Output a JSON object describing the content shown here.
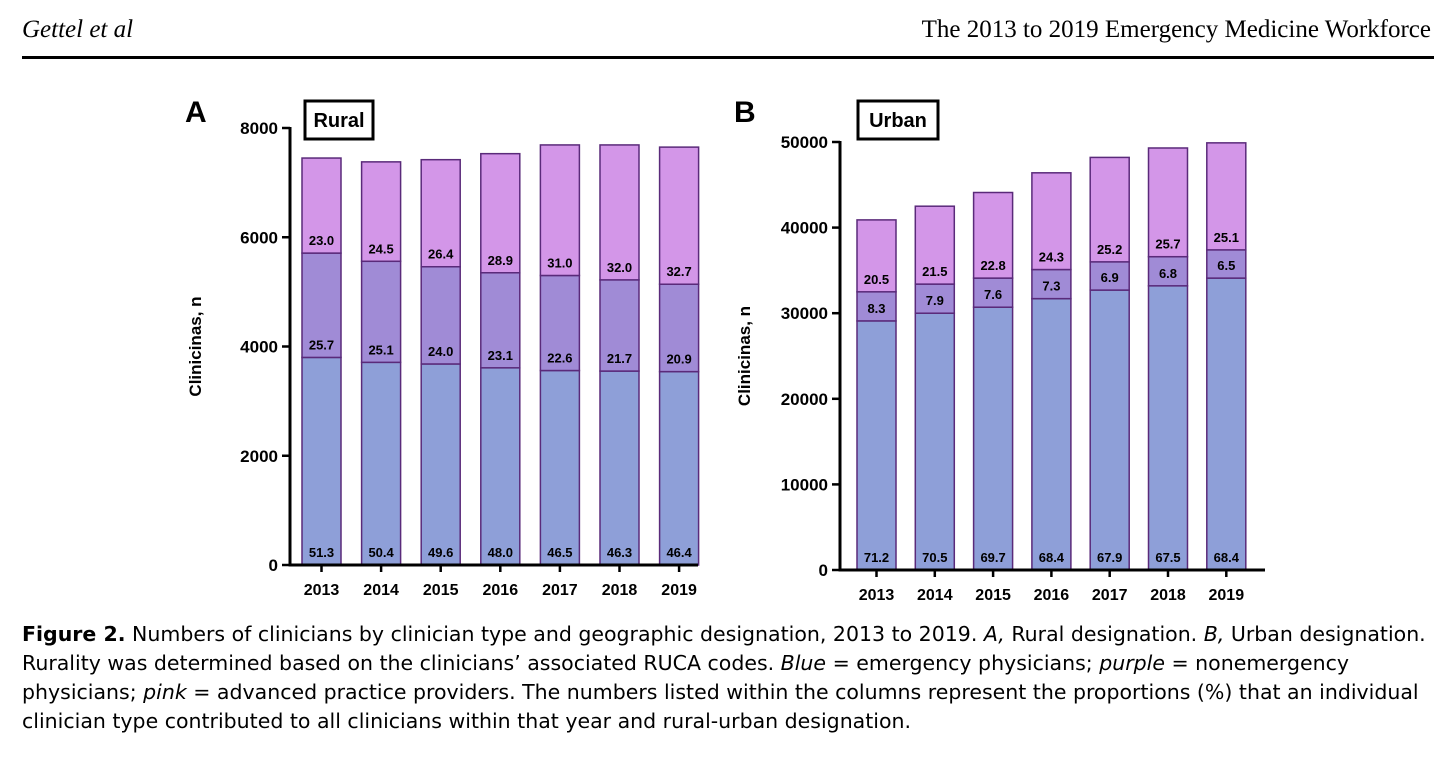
{
  "header": {
    "left": "Gettel et al",
    "right": "The 2013 to 2019 Emergency Medicine Workforce"
  },
  "colors": {
    "emergency": "#8e9fd8",
    "nonemergency": "#a08bd6",
    "advanced": "#d396e8",
    "outline": "#5a2a7a"
  },
  "chart_data": [
    {
      "type": "bar",
      "stacked": true,
      "panel": "A",
      "title": "Rural",
      "ylabel": "Clinicinas, n",
      "ylim": [
        0,
        8000
      ],
      "yticks": [
        0,
        2000,
        4000,
        6000,
        8000
      ],
      "categories": [
        "2013",
        "2014",
        "2015",
        "2016",
        "2017",
        "2018",
        "2019"
      ],
      "series": [
        {
          "key": "emergency",
          "values": [
            3800,
            3710,
            3680,
            3610,
            3560,
            3550,
            3540
          ],
          "labels": [
            "51.3",
            "50.4",
            "49.6",
            "48.0",
            "46.5",
            "46.3",
            "46.4"
          ]
        },
        {
          "key": "nonemergency",
          "values": [
            1910,
            1850,
            1780,
            1740,
            1740,
            1670,
            1600
          ],
          "labels": [
            "25.7",
            "25.1",
            "24.0",
            "23.1",
            "22.6",
            "21.7",
            "20.9"
          ]
        },
        {
          "key": "advanced",
          "values": [
            1740,
            1820,
            1960,
            2180,
            2390,
            2470,
            2510
          ],
          "labels": [
            "23.0",
            "24.5",
            "26.4",
            "28.9",
            "31.0",
            "32.0",
            "32.7"
          ]
        }
      ]
    },
    {
      "type": "bar",
      "stacked": true,
      "panel": "B",
      "title": "Urban",
      "ylabel": "Clinicinas, n",
      "ylim": [
        0,
        50000
      ],
      "yticks": [
        0,
        10000,
        20000,
        30000,
        40000,
        50000
      ],
      "categories": [
        "2013",
        "2014",
        "2015",
        "2016",
        "2017",
        "2018",
        "2019"
      ],
      "series": [
        {
          "key": "emergency",
          "values": [
            29100,
            30000,
            30700,
            31700,
            32700,
            33200,
            34100
          ],
          "labels": [
            "71.2",
            "70.5",
            "69.7",
            "68.4",
            "67.9",
            "67.5",
            "68.4"
          ]
        },
        {
          "key": "nonemergency",
          "values": [
            3400,
            3400,
            3400,
            3400,
            3300,
            3400,
            3300
          ],
          "labels": [
            "8.3",
            "7.9",
            "7.6",
            "7.3",
            "6.9",
            "6.8",
            "6.5"
          ]
        },
        {
          "key": "advanced",
          "values": [
            8400,
            9100,
            10000,
            11300,
            12200,
            12700,
            12500
          ],
          "labels": [
            "20.5",
            "21.5",
            "22.8",
            "24.3",
            "25.2",
            "25.7",
            "25.1"
          ]
        }
      ]
    }
  ],
  "caption": {
    "label": "Figure 2.",
    "p1": " Numbers of clinicians by clinician type and geographic designation, 2013 to 2019. ",
    "a": "A,",
    "p2": " Rural designation. ",
    "b": "B,",
    "p3": " Urban designation. Rurality was determined based on the clinicians’ associated RUCA codes. ",
    "blue": "Blue",
    "p4": " = emergency physicians; ",
    "purple": "purple",
    "p5": " = nonemergency physicians; ",
    "pink": "pink",
    "p6": " = advanced practice providers. The numbers listed within the columns represent the proportions (%) that an individual clinician type contributed to all clinicians within that year and rural-urban designation."
  }
}
